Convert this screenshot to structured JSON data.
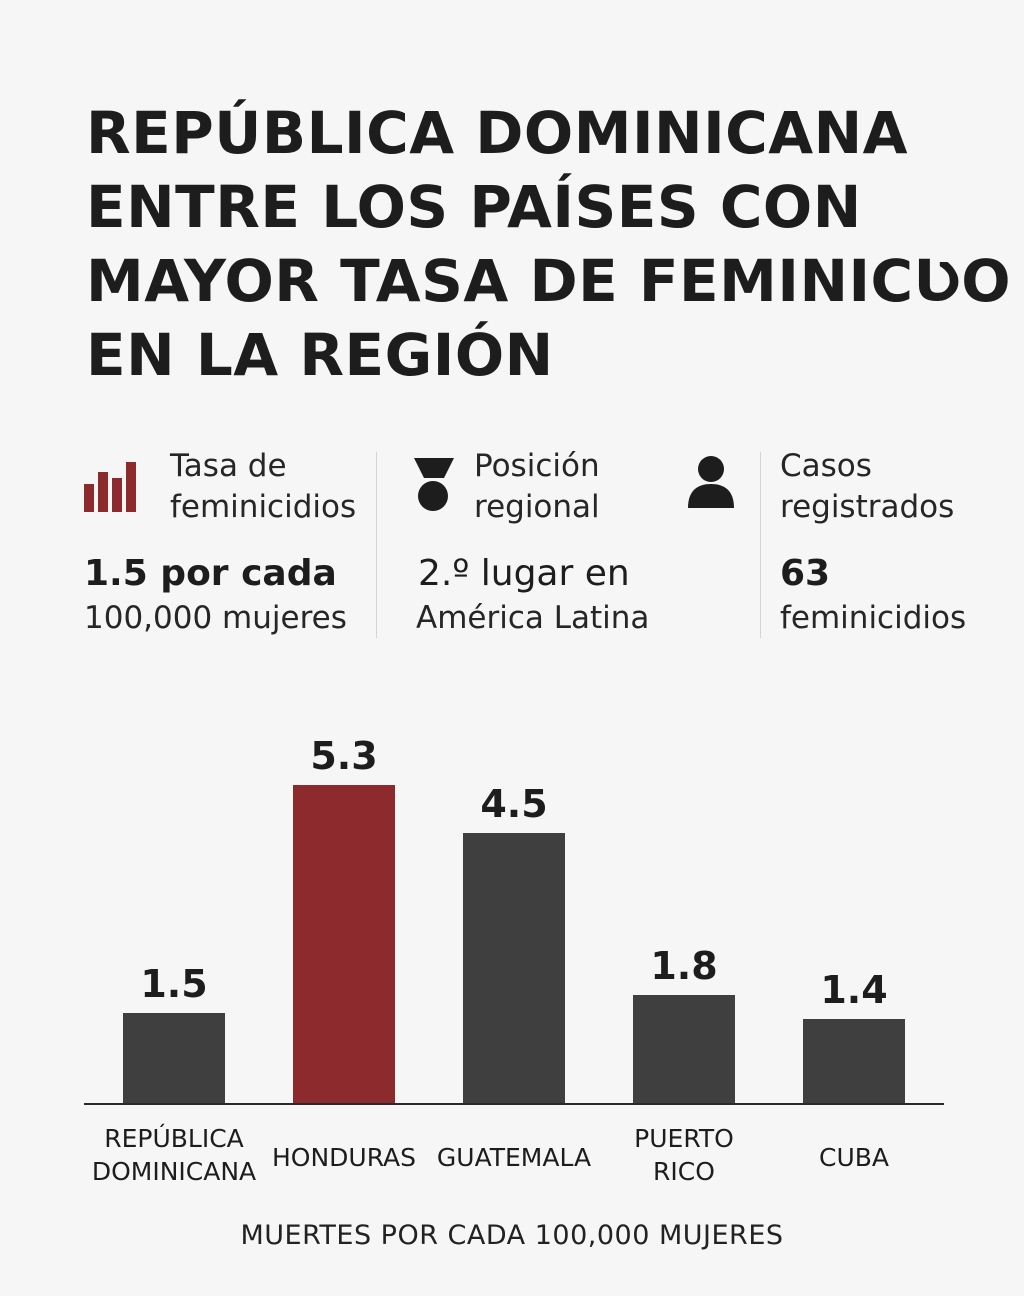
{
  "title": {
    "lines": [
      "REPÚBLICA DOMINICANA",
      "ENTRE LOS PAÍSES CON",
      "MAYOR TASA DE FEMINICƲO",
      "EN LA REGIÓN"
    ]
  },
  "stats": [
    {
      "icon": "bar-chart-icon",
      "label_line1": "Tasa de",
      "label_line2": "feminicidios",
      "value": "1.5 por cada",
      "unit": "100,000 mujeres"
    },
    {
      "icon": "medal-icon",
      "label_line1": "Posición",
      "label_line2": "regional",
      "value": "2.º lugar en",
      "unit": "América Latina"
    },
    {
      "icon": "person-icon",
      "label_line1": "Casos",
      "label_line2": "registrados",
      "value": "63",
      "unit": "feminicidios"
    }
  ],
  "colors": {
    "accent": "#8c2a2d",
    "bar": "#3f3f3f",
    "text": "#1e1e1e",
    "background": "#f6f6f6"
  },
  "chart_data": {
    "type": "bar",
    "title": "",
    "categories": [
      [
        "REPÚBLICA",
        "DOMINICANA"
      ],
      [
        "HONDURAS"
      ],
      [
        "GUATEMALA"
      ],
      [
        "PUERTO",
        "RICO"
      ],
      [
        "CUBA"
      ]
    ],
    "values": [
      1.5,
      5.3,
      4.5,
      1.8,
      1.4
    ],
    "value_labels": [
      "1.5",
      "5.3",
      "4.5",
      "1.8",
      "1.4"
    ],
    "highlight_index": 1,
    "xlabel": "MUERTES POR CADA 100,000 MUJERES",
    "ylabel": "",
    "ylim": [
      0,
      5.3
    ],
    "grid": false
  }
}
